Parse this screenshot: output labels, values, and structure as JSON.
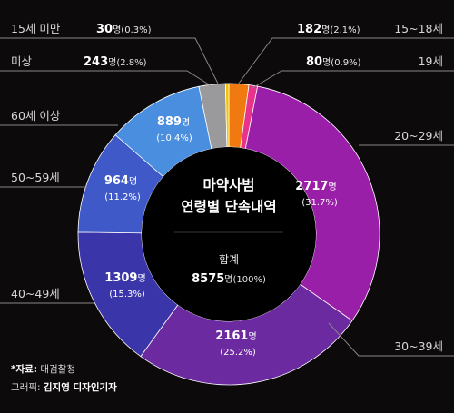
{
  "chart_data": {
    "type": "pie",
    "style": "donut",
    "title_lines": [
      "마약사범",
      "연령별 단속내역"
    ],
    "total_label": "합계",
    "total_value": "8575",
    "total_text": "명(100%)",
    "unit": "명",
    "slices": [
      {
        "age": "15~18세",
        "count": 182,
        "count_text": "182",
        "pct_text": "명(2.1%)",
        "percent": 2.1,
        "color": "#f07a10"
      },
      {
        "age": "19세",
        "count": 80,
        "count_text": "80",
        "pct_text": "명(0.9%)",
        "percent": 0.9,
        "color": "#e8338a"
      },
      {
        "age": "20~29세",
        "count": 2717,
        "count_text": "2717",
        "pct_text": "명",
        "pct_text2": "(31.7%)",
        "percent": 31.7,
        "color": "#9a1fa8"
      },
      {
        "age": "30~39세",
        "count": 2161,
        "count_text": "2161",
        "pct_text": "명",
        "pct_text2": "(25.2%)",
        "percent": 25.2,
        "color": "#6c2aa0"
      },
      {
        "age": "40~49세",
        "count": 1309,
        "count_text": "1309",
        "pct_text": "명",
        "pct_text2": "(15.3%)",
        "percent": 15.3,
        "color": "#3a35a8"
      },
      {
        "age": "50~59세",
        "count": 964,
        "count_text": "964",
        "pct_text": "명",
        "pct_text2": "(11.2%)",
        "percent": 11.2,
        "color": "#3f5ac8"
      },
      {
        "age": "60세 이상",
        "count": 889,
        "count_text": "889",
        "pct_text": "명",
        "pct_text2": "(10.4%)",
        "percent": 10.4,
        "color": "#4a8ee0"
      },
      {
        "age": "미상",
        "count": 243,
        "count_text": "243",
        "pct_text": "명(2.8%)",
        "percent": 2.8,
        "color": "#9a999b"
      },
      {
        "age": "15세 미만",
        "count": 30,
        "count_text": "30",
        "pct_text": "명(0.3%)",
        "percent": 0.3,
        "color": "#f2c200"
      }
    ]
  },
  "footer": {
    "source_label": "*자료:",
    "source": "대검찰청",
    "graphic_label": "그래픽:",
    "graphic": "김지영 디자인기자"
  }
}
